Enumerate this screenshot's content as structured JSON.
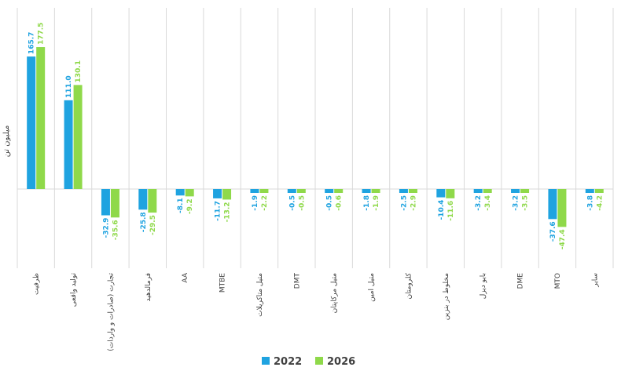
{
  "chart_data": {
    "type": "bar",
    "ylabel": "میلیون تن",
    "categories": [
      "ظرفیت",
      "تولید واقعی",
      "تجارت (صادرات و واردات)",
      "فرمالدهید",
      "AA",
      "MTBE",
      "متیل متاکریلات",
      "DMT",
      "متیل مرکاپتان",
      "متیل امین",
      "کلرومتان",
      "مخلوط در بنزین",
      "بایو دیزل",
      "DME",
      "MTO",
      "سایر"
    ],
    "series": [
      {
        "name": "2022",
        "color": "#1fa3e0",
        "values": [
          165.7,
          111.0,
          -32.9,
          -25.8,
          -8.1,
          -11.7,
          -1.9,
          -0.5,
          -0.5,
          -1.8,
          -2.5,
          -10.4,
          -3.2,
          -3.2,
          -37.6,
          -3.8
        ],
        "labels": [
          "165.7",
          "111.0",
          "-32.9",
          "-25.8",
          "-8.1",
          "-11.7",
          "-1.9",
          "-0.5",
          "-0.5",
          "-1.8",
          "-2.5",
          "-10.4",
          "-3.2",
          "-3.2",
          "-37.6",
          "-3.8"
        ]
      },
      {
        "name": "2026",
        "color": "#8fd94a",
        "values": [
          177.5,
          130.1,
          -35.6,
          -29.5,
          -9.2,
          -13.2,
          -2.2,
          -0.5,
          -0.6,
          -1.9,
          -2.9,
          -11.6,
          -3.4,
          -3.5,
          -47.4,
          -4.2
        ],
        "labels": [
          "177.5",
          "130.1",
          "-35.6",
          "-29.5",
          "-9.2",
          "-13.2",
          "-2.2",
          "-0.5",
          "-0.6",
          "-1.9",
          "-2.9",
          "-11.6",
          "-3.4",
          "-3.5",
          "-47.4",
          "-4.2"
        ]
      }
    ],
    "ylim": [
      -88,
      205
    ],
    "grid": "vertical category separators",
    "legend": "bottom-center"
  }
}
